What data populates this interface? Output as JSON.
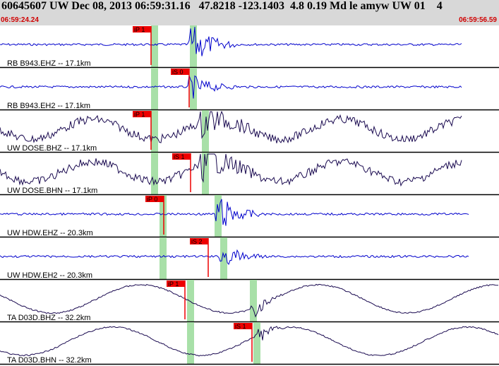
{
  "header": {
    "title": "60645607 UW Dec 08, 2013 06:59:31.16   47.8218 -123.1403  4.8 0.19 Md le amyw UW 01    4",
    "start_time": "06:59:24.24",
    "end_time": "06:59:56.59"
  },
  "colors": {
    "header_bg": "#d8d8d8",
    "time_red": "#d00000",
    "trace_blue": "#0000cc",
    "trace_dark": "#1a0a50",
    "pick_red": "#ee0000",
    "window_green": "#a8e0a8"
  },
  "channels": [
    {
      "label": "RB B943.EHZ -- 17.1km",
      "pick": "iP 1",
      "style": "blue-spiky"
    },
    {
      "label": "RB B943.EH2 -- 17.1km",
      "pick": "iS 0",
      "style": "blue-quiet"
    },
    {
      "label": "UW DOSE.BHZ -- 17.1km",
      "pick": "iP 1",
      "style": "dark-wave"
    },
    {
      "label": "UW DOSE.BHN -- 17.1km",
      "pick": "iS 1",
      "style": "dark-wave"
    },
    {
      "label": "UW HDW.EHZ -- 20.3km",
      "pick": "iP 0",
      "style": "blue-spiky"
    },
    {
      "label": "UW HDW.EH2 -- 20.3km",
      "pick": "iS 2",
      "style": "blue-quiet"
    },
    {
      "label": "TA D03D.BHZ -- 32.2km",
      "pick": "iP 1",
      "style": "long-wave"
    },
    {
      "label": "TA D03D.BHN -- 32.2km",
      "pick": "iS 1",
      "style": "long-wave"
    }
  ]
}
